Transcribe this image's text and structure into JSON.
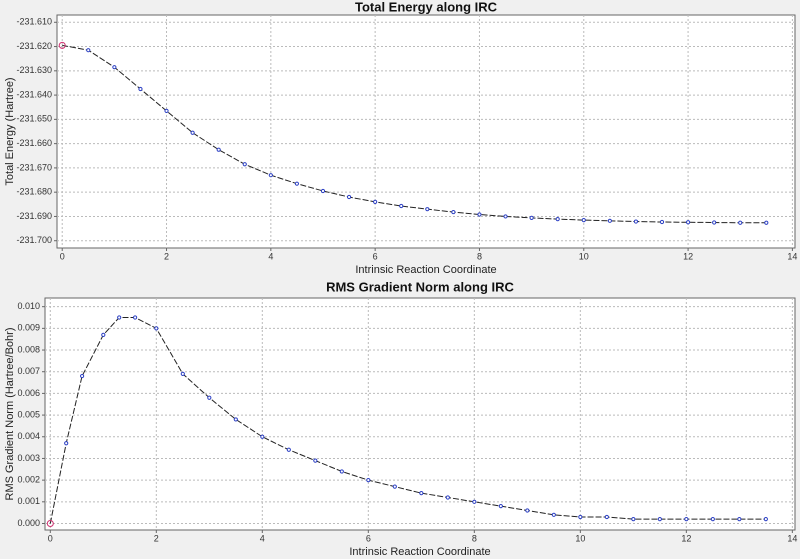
{
  "chart_data": [
    {
      "type": "line",
      "title": "Total Energy along IRC",
      "x_label": "Intrinsic Reaction Coordinate",
      "y_label": "Total Energy (Hartree)",
      "x": [
        0,
        0.5,
        1,
        1.5,
        2,
        2.5,
        3,
        3.5,
        4,
        4.5,
        5,
        5.5,
        6,
        6.5,
        7,
        7.5,
        8,
        8.5,
        9,
        9.5,
        10,
        10.5,
        11,
        11.5,
        12,
        12.5,
        13,
        13.5
      ],
      "values": [
        -231.6195,
        -231.6215,
        -231.6285,
        -231.6375,
        -231.6465,
        -231.6555,
        -231.6625,
        -231.6685,
        -231.673,
        -231.6765,
        -231.6795,
        -231.682,
        -231.684,
        -231.6857,
        -231.687,
        -231.6882,
        -231.6892,
        -231.69,
        -231.6906,
        -231.6911,
        -231.6915,
        -231.6918,
        -231.6921,
        -231.6923,
        -231.6924,
        -231.6925,
        -231.6926,
        -231.6926
      ],
      "color": "#222222",
      "marker_color": "#2b3fc4",
      "highlight_color": "#d03070",
      "xlim": [
        -0.1,
        14.05
      ],
      "xticks": [
        0,
        2,
        4,
        6,
        8,
        10,
        12,
        14
      ],
      "ylim": [
        -231.703,
        -231.607
      ],
      "yticks": [
        {
          "value": -231.61,
          "label": "-231.610"
        },
        {
          "value": -231.62,
          "label": "-231.620"
        },
        {
          "value": -231.63,
          "label": "-231.630"
        },
        {
          "value": -231.64,
          "label": "-231.640"
        },
        {
          "value": -231.65,
          "label": "-231.650"
        },
        {
          "value": -231.66,
          "label": "-231.660"
        },
        {
          "value": -231.67,
          "label": "-231.670"
        },
        {
          "value": -231.68,
          "label": "-231.680"
        },
        {
          "value": -231.69,
          "label": "-231.690"
        },
        {
          "value": -231.7,
          "label": "-231.700"
        }
      ],
      "grid": true
    },
    {
      "type": "line",
      "title": "RMS Gradient Norm along IRC",
      "x_label": "Intrinsic Reaction Coordinate",
      "y_label": "RMS Gradient Norm (Hartree/Bohr)",
      "x": [
        0,
        0.3,
        0.6,
        1,
        1.3,
        1.6,
        2,
        2.5,
        3,
        3.5,
        4,
        4.5,
        5,
        5.5,
        6,
        6.5,
        7,
        7.5,
        8,
        8.5,
        9,
        9.5,
        10,
        10.5,
        11,
        11.5,
        12,
        12.5,
        13,
        13.5
      ],
      "values": [
        0,
        0.0037,
        0.0068,
        0.0087,
        0.0095,
        0.0095,
        0.009,
        0.0069,
        0.0058,
        0.0048,
        0.004,
        0.0034,
        0.0029,
        0.0024,
        0.002,
        0.0017,
        0.0014,
        0.0012,
        0.001,
        0.0008,
        0.0006,
        0.0004,
        0.0003,
        0.0003,
        0.0002,
        0.0002,
        0.0002,
        0.0002,
        0.0002,
        0.0002
      ],
      "color": "#222222",
      "marker_color": "#2b3fc4",
      "highlight_color": "#d03070",
      "xlim": [
        -0.1,
        14.05
      ],
      "xticks": [
        0,
        2,
        4,
        6,
        8,
        10,
        12,
        14
      ],
      "ylim": [
        -0.0003,
        0.0104
      ],
      "yticks": [
        {
          "value": 0,
          "label": "0.000"
        },
        0.001,
        0.002,
        0.003,
        0.004,
        0.005,
        0.006,
        0.007,
        0.008,
        0.009,
        {
          "value": 0.01,
          "label": "0.010"
        }
      ],
      "grid": true
    }
  ]
}
